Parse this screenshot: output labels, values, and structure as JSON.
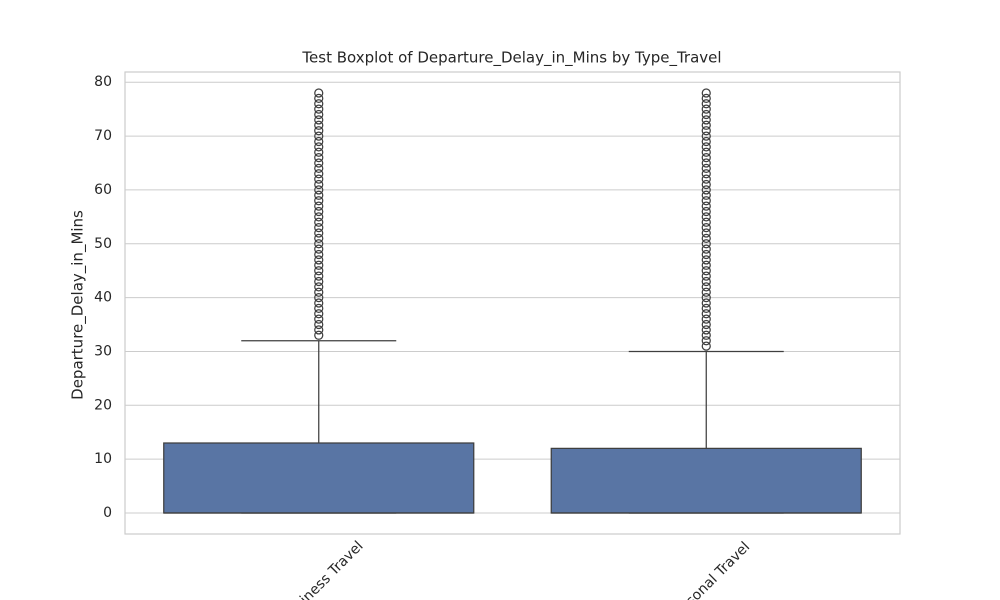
{
  "chart_data": {
    "type": "box",
    "title": "Test Boxplot of Departure_Delay_in_Mins by Type_Travel",
    "y_label": "Departure_Delay_in_Mins",
    "categories": [
      "Business Travel",
      "Personal Travel"
    ],
    "color": "#5975a4",
    "edge_color": "#3f3f3f",
    "boxes": [
      {
        "whislo": 0,
        "q1": 0,
        "med": 0,
        "q3": 13,
        "whishi": 32,
        "fliers": [
          33,
          34,
          35,
          36,
          37,
          38,
          39,
          40,
          41,
          42,
          43,
          44,
          45,
          46,
          47,
          48,
          49,
          50,
          51,
          52,
          53,
          54,
          55,
          56,
          57,
          58,
          59,
          60,
          61,
          62,
          63,
          64,
          65,
          66,
          67,
          68,
          69,
          70,
          71,
          72,
          73,
          74,
          75,
          76,
          77,
          78
        ]
      },
      {
        "whislo": 0,
        "q1": 0,
        "med": 0,
        "q3": 12,
        "whishi": 30,
        "fliers": [
          31,
          32,
          33,
          34,
          35,
          36,
          37,
          38,
          39,
          40,
          41,
          42,
          43,
          44,
          45,
          46,
          47,
          48,
          49,
          50,
          51,
          52,
          53,
          54,
          55,
          56,
          57,
          58,
          59,
          60,
          61,
          62,
          63,
          64,
          65,
          66,
          67,
          68,
          69,
          70,
          71,
          72,
          73,
          74,
          75,
          76,
          77,
          78
        ]
      }
    ],
    "ylim": [
      -3.9,
      81.9
    ],
    "yticks": [
      0,
      10,
      20,
      30,
      40,
      50,
      60,
      70,
      80
    ],
    "grid": true
  }
}
